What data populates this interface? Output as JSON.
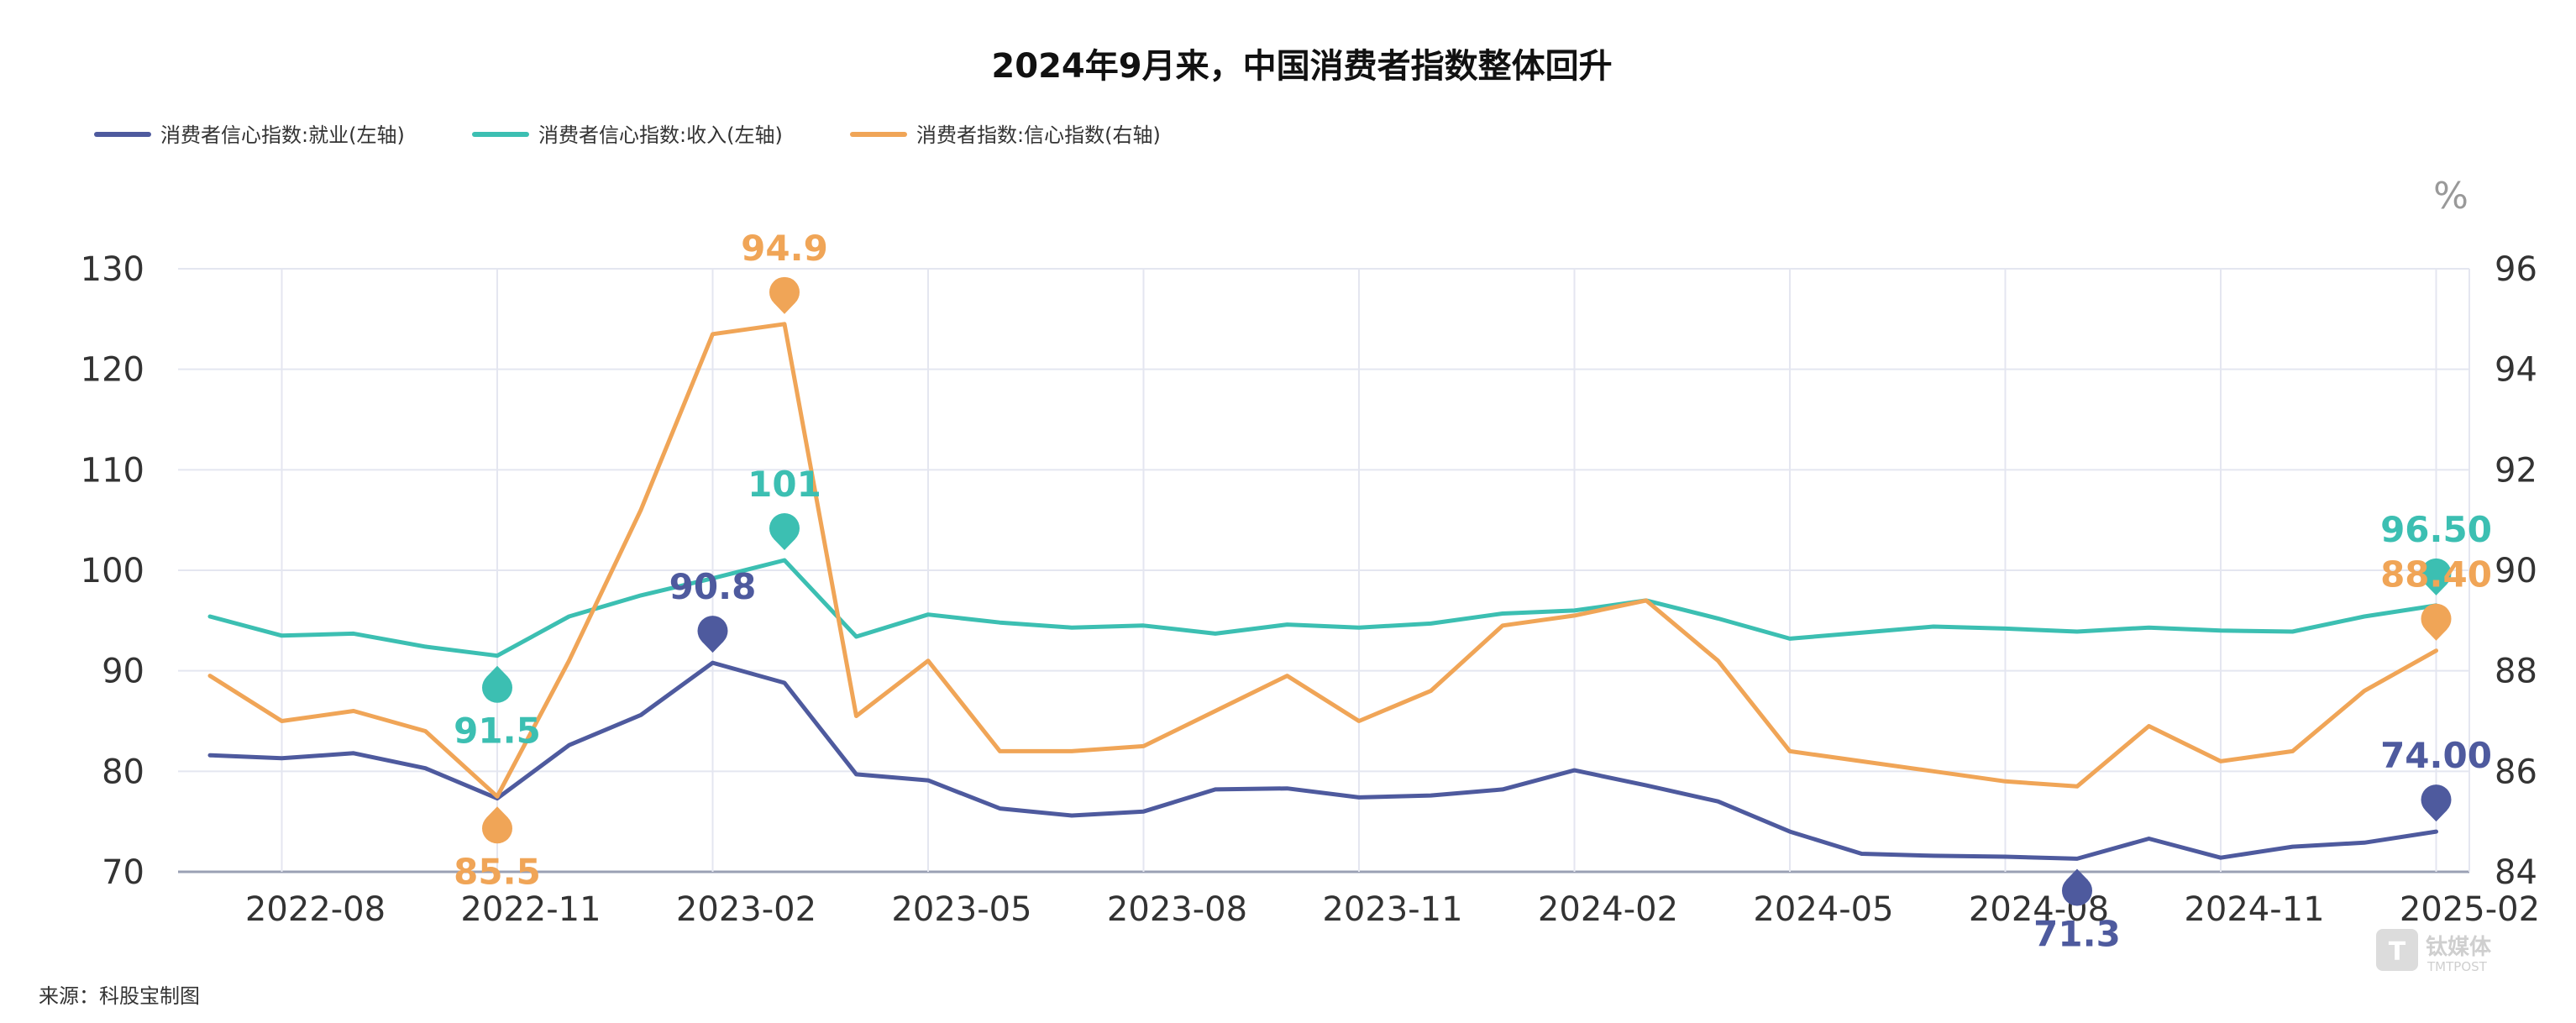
{
  "chart_data": {
    "type": "line",
    "title": "2024年9月来，中国消费者指数整体回升",
    "source": "来源：科股宝制图",
    "right_axis_unit": "%",
    "x": [
      "2022-07",
      "2022-08",
      "2022-09",
      "2022-10",
      "2022-11",
      "2022-12",
      "2023-01",
      "2023-02",
      "2023-03",
      "2023-04",
      "2023-05",
      "2023-06",
      "2023-07",
      "2023-08",
      "2023-09",
      "2023-10",
      "2023-11",
      "2023-12",
      "2024-01",
      "2024-02",
      "2024-03",
      "2024-04",
      "2024-05",
      "2024-06",
      "2024-07",
      "2024-08",
      "2024-09",
      "2024-10",
      "2024-11",
      "2024-12",
      "2025-01",
      "2025-02"
    ],
    "x_tick_labels": [
      "2022-08",
      "2022-11",
      "2023-02",
      "2023-05",
      "2023-08",
      "2023-11",
      "2024-02",
      "2024-05",
      "2024-08",
      "2024-11",
      "2025-02"
    ],
    "left_axis": {
      "min": 70,
      "max": 130,
      "ticks": [
        70,
        80,
        90,
        100,
        110,
        120,
        130
      ]
    },
    "right_axis": {
      "min": 84,
      "max": 96,
      "ticks": [
        84,
        86,
        88,
        90,
        92,
        94,
        96
      ]
    },
    "grid": true,
    "legend_position": "top-left",
    "series": [
      {
        "name": "消费者信心指数:就业(左轴)",
        "axis": "left",
        "color": "#4e5a9e",
        "values": [
          81.6,
          81.3,
          81.8,
          80.3,
          77.3,
          82.6,
          85.6,
          90.8,
          88.8,
          79.7,
          79.1,
          76.3,
          75.6,
          76.0,
          78.2,
          78.3,
          77.4,
          77.6,
          78.2,
          80.1,
          78.6,
          77.0,
          74.0,
          71.8,
          71.6,
          71.5,
          71.3,
          73.3,
          71.4,
          72.5,
          72.9,
          74.0
        ],
        "marks": [
          {
            "index": 7,
            "label": "90.8",
            "label_pos": "above"
          },
          {
            "index": 26,
            "label": "71.3",
            "label_pos": "below"
          },
          {
            "index": 31,
            "label": "74.00",
            "label_pos": "above"
          }
        ]
      },
      {
        "name": "消费者信心指数:收入(左轴)",
        "axis": "left",
        "color": "#3cbfb2",
        "values": [
          95.4,
          93.5,
          93.7,
          92.4,
          91.5,
          95.4,
          97.5,
          99.2,
          101.0,
          93.4,
          95.6,
          94.8,
          94.3,
          94.5,
          93.7,
          94.6,
          94.3,
          94.7,
          95.7,
          96.0,
          97.0,
          95.2,
          93.2,
          93.8,
          94.4,
          94.2,
          93.9,
          94.3,
          94.0,
          93.9,
          95.4,
          96.5
        ],
        "marks": [
          {
            "index": 4,
            "label": "91.5",
            "label_pos": "below"
          },
          {
            "index": 8,
            "label": "101",
            "label_pos": "above"
          },
          {
            "index": 31,
            "label": "96.50",
            "label_pos": "above"
          }
        ]
      },
      {
        "name": "消费者指数:信心指数(右轴)",
        "axis": "right",
        "color": "#f0a557",
        "values": [
          87.9,
          87.0,
          87.2,
          86.8,
          85.5,
          88.2,
          91.2,
          94.7,
          94.9,
          87.1,
          88.2,
          86.4,
          86.4,
          86.5,
          87.2,
          87.9,
          87.0,
          87.6,
          88.9,
          89.1,
          89.4,
          88.2,
          86.4,
          86.2,
          86.0,
          85.8,
          85.7,
          86.9,
          86.2,
          86.4,
          87.6,
          88.4
        ],
        "marks": [
          {
            "index": 4,
            "label": "85.5",
            "label_pos": "below"
          },
          {
            "index": 8,
            "label": "94.9",
            "label_pos": "above"
          },
          {
            "index": 31,
            "label": "88.40",
            "label_pos": "above"
          }
        ]
      }
    ],
    "watermark": {
      "text": "钛媒体",
      "sub": "TMTPOST"
    }
  }
}
